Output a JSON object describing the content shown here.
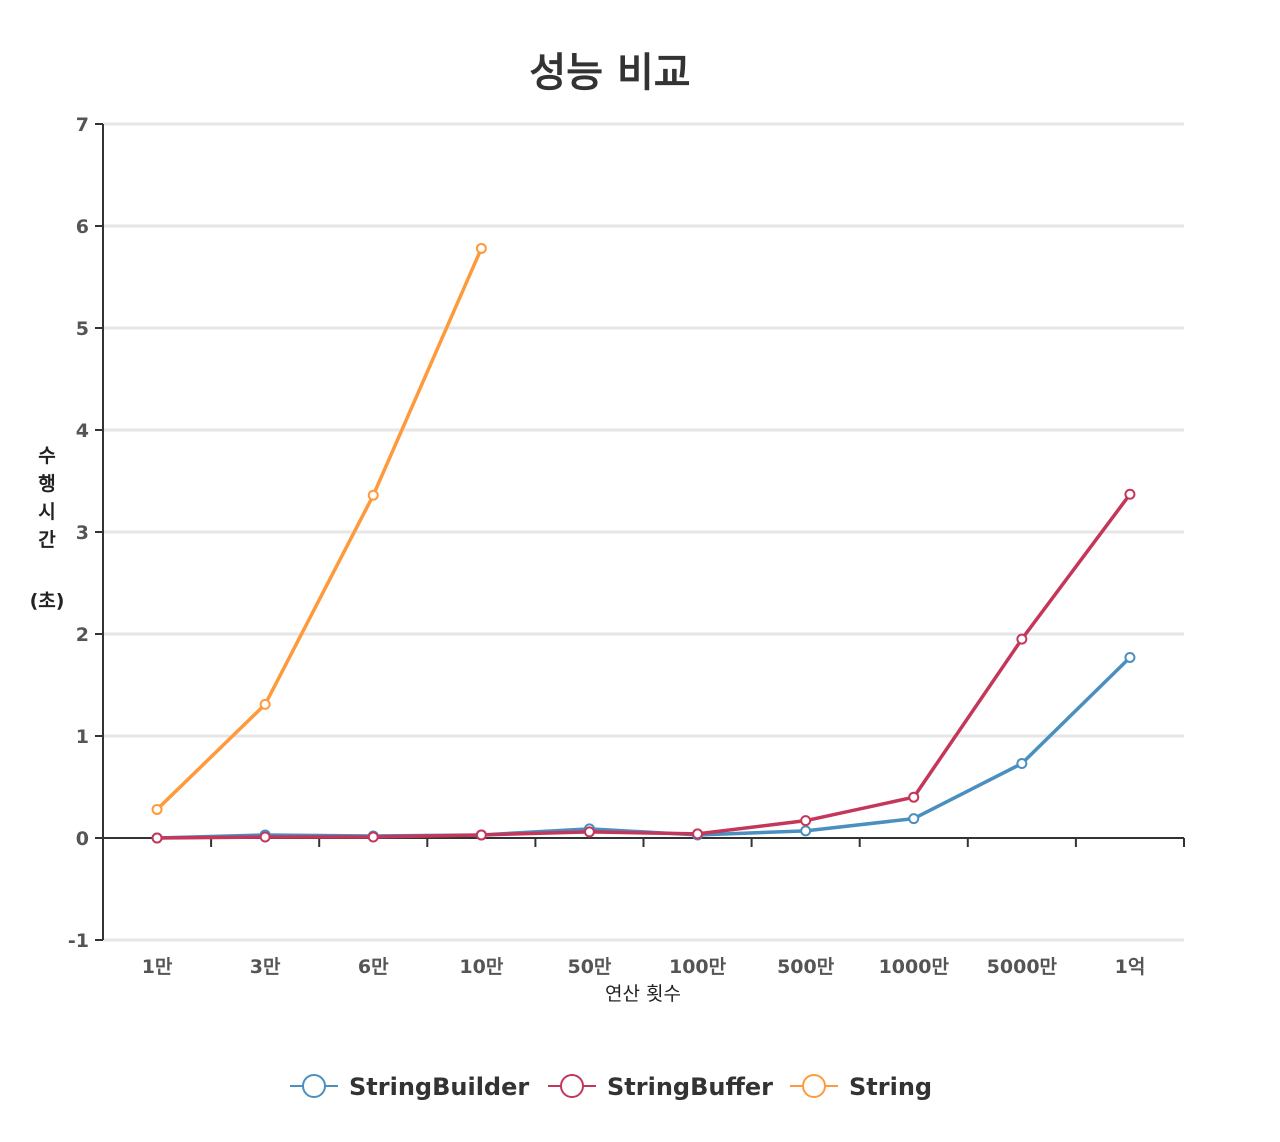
{
  "chart_data": {
    "type": "line",
    "title": "성능 비교",
    "xlabel": "연산 횟수",
    "ylabel": "수행시간 (초)",
    "ylabel_main": "수행시간",
    "ylabel_unit": "(초)",
    "categories": [
      "1만",
      "3만",
      "6만",
      "10만",
      "50만",
      "100만",
      "500만",
      "1000만",
      "5000만",
      "1억"
    ],
    "ylim": [
      -1,
      7
    ],
    "yticks": [
      -1,
      0,
      1,
      2,
      3,
      4,
      5,
      6,
      7
    ],
    "grid": true,
    "legend_position": "bottom",
    "series": [
      {
        "name": "StringBuilder",
        "color": "#4a8fbf",
        "values": [
          0.0,
          0.03,
          0.02,
          0.03,
          0.09,
          0.03,
          0.07,
          0.19,
          0.73,
          1.77
        ]
      },
      {
        "name": "StringBuffer",
        "color": "#c4365a",
        "values": [
          0.0,
          0.01,
          0.01,
          0.03,
          0.06,
          0.04,
          0.17,
          0.4,
          1.95,
          3.37
        ]
      },
      {
        "name": "String",
        "color": "#ff9a3c",
        "values": [
          0.28,
          1.31,
          3.36,
          5.78,
          null,
          null,
          null,
          null,
          null,
          null
        ]
      }
    ]
  }
}
